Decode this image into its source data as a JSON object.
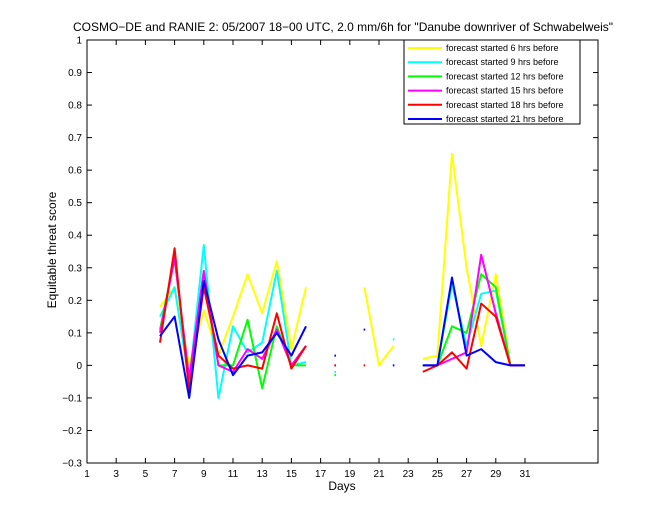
{
  "chart_data": {
    "type": "line",
    "title": "COSMO−DE and RANIE 2: 05/2007 18−00 UTC, 2.0 mm/6h for \"Danube downriver of Schwabelweis\"",
    "xlabel": "Days",
    "ylabel": "Equitable threat score",
    "xlim": [
      1,
      36
    ],
    "ylim": [
      -0.3,
      1
    ],
    "xticks": [
      1,
      3,
      5,
      7,
      9,
      11,
      13,
      15,
      17,
      19,
      21,
      23,
      25,
      27,
      29,
      31
    ],
    "xtick_labels": [
      "1",
      "3",
      "5",
      "7",
      "9",
      "11",
      "13",
      "15",
      "17",
      "19",
      "21",
      "23",
      "25",
      "27",
      "29",
      "31"
    ],
    "yticks": [
      -0.3,
      -0.2,
      -0.1,
      0,
      0.1,
      0.2,
      0.3,
      0.4,
      0.5,
      0.6,
      0.7,
      0.8,
      0.9,
      1
    ],
    "ytick_labels": [
      "−0.3",
      "−0.2",
      "−0.1",
      "0",
      "0.1",
      "0.2",
      "0.3",
      "0.4",
      "0.5",
      "0.6",
      "0.7",
      "0.8",
      "0.9",
      "1"
    ],
    "legend_position": "top-right",
    "grid": false,
    "x": [
      6,
      7,
      8,
      9,
      10,
      11,
      12,
      13,
      14,
      15,
      16,
      17,
      18,
      19,
      20,
      21,
      22,
      23,
      24,
      25,
      26,
      27,
      28,
      29,
      30,
      31
    ],
    "series": [
      {
        "name": "forecast started 6 hrs before",
        "color": "#ffff00",
        "values": [
          0.18,
          0.24,
          0.0,
          0.17,
          0.03,
          0.15,
          0.28,
          0.16,
          0.32,
          0.05,
          0.24,
          null,
          0.0,
          null,
          0.24,
          0.0,
          0.06,
          null,
          0.02,
          0.03,
          0.65,
          0.3,
          0.06,
          0.28,
          0.0,
          0.0
        ]
      },
      {
        "name": "forecast started 9 hrs before",
        "color": "#00ffff",
        "values": [
          0.15,
          0.24,
          -0.05,
          0.37,
          -0.1,
          0.12,
          0.04,
          0.07,
          0.29,
          0.0,
          0.01,
          null,
          -0.02,
          null,
          null,
          null,
          0.08,
          null,
          0.0,
          0.0,
          0.25,
          0.06,
          0.22,
          0.23,
          0.0,
          0.0
        ]
      },
      {
        "name": "forecast started 12 hrs before",
        "color": "#00ff00",
        "values": [
          0.11,
          0.33,
          -0.05,
          0.29,
          0.0,
          0.0,
          0.14,
          -0.07,
          0.12,
          0.0,
          0.0,
          null,
          -0.03,
          null,
          null,
          null,
          null,
          null,
          0.0,
          0.0,
          0.12,
          0.1,
          0.28,
          0.24,
          0.0,
          0.0
        ]
      },
      {
        "name": "forecast started 15 hrs before",
        "color": "#ff00ff",
        "values": [
          0.1,
          0.33,
          -0.04,
          0.29,
          0.0,
          -0.02,
          0.05,
          0.02,
          0.11,
          0.0,
          0.06,
          null,
          0.0,
          null,
          null,
          null,
          null,
          null,
          0.0,
          0.0,
          0.02,
          0.04,
          0.34,
          0.16,
          0.0,
          0.0
        ]
      },
      {
        "name": "forecast started 18 hrs before",
        "color": "#ff0000",
        "values": [
          0.07,
          0.36,
          -0.08,
          0.24,
          0.03,
          -0.01,
          0.0,
          -0.01,
          0.16,
          -0.01,
          0.06,
          null,
          0.0,
          null,
          0.0,
          null,
          null,
          null,
          -0.02,
          0.0,
          0.04,
          -0.01,
          0.19,
          0.15,
          0.0,
          0.0
        ]
      },
      {
        "name": "forecast started 21 hrs before",
        "color": "#0000ff",
        "values": [
          0.09,
          0.15,
          -0.1,
          0.26,
          0.08,
          -0.03,
          0.03,
          0.04,
          0.1,
          0.03,
          0.12,
          null,
          0.03,
          null,
          0.11,
          null,
          0.0,
          null,
          0.0,
          0.0,
          0.27,
          0.03,
          0.05,
          0.01,
          0.0,
          0.0
        ]
      }
    ]
  }
}
